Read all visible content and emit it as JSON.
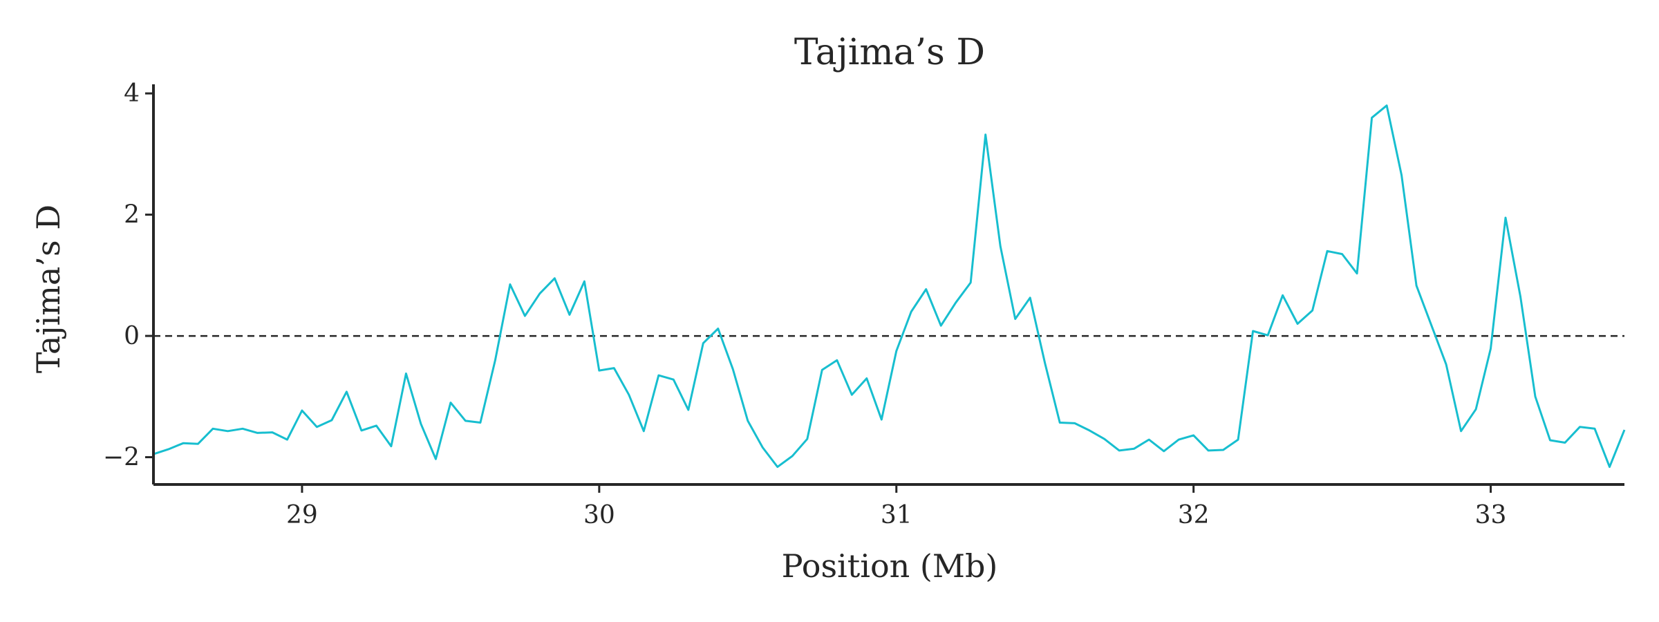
{
  "chart_data": {
    "type": "line",
    "title": "Tajima’s D",
    "xlabel": "Position (Mb)",
    "ylabel": "Tajima’s D",
    "xlim": [
      28.5,
      33.45
    ],
    "ylim": [
      -2.45,
      4.15
    ],
    "xticks": [
      29,
      30,
      31,
      32,
      33
    ],
    "xtick_labels": [
      "29",
      "30",
      "31",
      "32",
      "33"
    ],
    "yticks": [
      -2,
      0,
      2,
      4
    ],
    "ytick_labels": [
      "−2",
      "0",
      "2",
      "4"
    ],
    "reference_line": {
      "y": 0,
      "style": "dashed",
      "color": "#262626"
    },
    "grid": false,
    "series": [
      {
        "color": "#17becf",
        "x": [
          28.5,
          28.55,
          28.6,
          28.65,
          28.7,
          28.75,
          28.8,
          28.85,
          28.9,
          28.95,
          29.0,
          29.05,
          29.1,
          29.15,
          29.2,
          29.25,
          29.3,
          29.35,
          29.4,
          29.45,
          29.5,
          29.55,
          29.6,
          29.65,
          29.7,
          29.75,
          29.8,
          29.85,
          29.9,
          29.95,
          30.0,
          30.05,
          30.1,
          30.15,
          30.2,
          30.25,
          30.3,
          30.35,
          30.4,
          30.45,
          30.5,
          30.55,
          30.6,
          30.65,
          30.7,
          30.75,
          30.8,
          30.85,
          30.9,
          30.95,
          31.0,
          31.05,
          31.1,
          31.15,
          31.2,
          31.25,
          31.3,
          31.35,
          31.4,
          31.45,
          31.5,
          31.55,
          31.6,
          31.65,
          31.7,
          31.75,
          31.8,
          31.85,
          31.9,
          31.95,
          32.0,
          32.05,
          32.1,
          32.15,
          32.2,
          32.25,
          32.3,
          32.35,
          32.4,
          32.45,
          32.5,
          32.55,
          32.6,
          32.65,
          32.7,
          32.75,
          32.8,
          32.85,
          32.9,
          32.95,
          33.0,
          33.05,
          33.1,
          33.15,
          33.2,
          33.25,
          33.3,
          33.35,
          33.4,
          33.45
        ],
        "y": [
          -1.95,
          -1.87,
          -1.77,
          -1.78,
          -1.53,
          -1.57,
          -1.53,
          -1.6,
          -1.59,
          -1.71,
          -1.23,
          -1.5,
          -1.39,
          -0.92,
          -1.56,
          -1.48,
          -1.82,
          -0.62,
          -1.45,
          -2.03,
          -1.1,
          -1.4,
          -1.43,
          -0.4,
          0.85,
          0.33,
          0.7,
          0.95,
          0.35,
          0.9,
          -0.57,
          -0.53,
          -0.97,
          -1.57,
          -0.65,
          -0.72,
          -1.22,
          -0.12,
          0.12,
          -0.55,
          -1.4,
          -1.84,
          -2.16,
          -1.98,
          -1.7,
          -0.56,
          -0.4,
          -0.97,
          -0.7,
          -1.38,
          -0.25,
          0.4,
          0.77,
          0.17,
          0.55,
          0.88,
          3.32,
          1.48,
          0.28,
          0.63,
          -0.45,
          -1.43,
          -1.44,
          -1.56,
          -1.7,
          -1.89,
          -1.86,
          -1.71,
          -1.9,
          -1.71,
          -1.64,
          -1.89,
          -1.88,
          -1.71,
          0.08,
          0.01,
          0.67,
          0.2,
          0.42,
          1.4,
          1.35,
          1.03,
          3.6,
          3.8,
          2.65,
          0.83,
          0.18,
          -0.47,
          -1.57,
          -1.21,
          -0.21,
          1.95,
          0.65,
          -1.0,
          -1.72,
          -1.76,
          -1.5,
          -1.53,
          -2.16,
          -1.55
        ]
      }
    ]
  }
}
